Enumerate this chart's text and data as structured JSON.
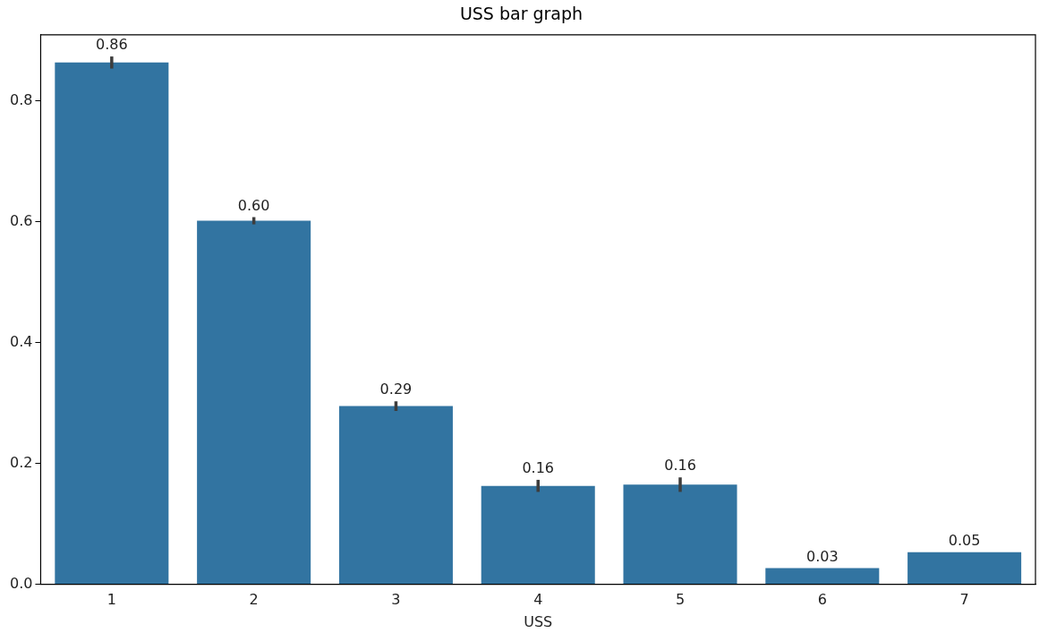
{
  "chart_data": {
    "type": "bar",
    "title": "USS bar graph",
    "xlabel": "USS",
    "categories": [
      "1",
      "2",
      "3",
      "4",
      "5",
      "6",
      "7"
    ],
    "values": [
      0.864,
      0.602,
      0.295,
      0.163,
      0.165,
      0.027,
      0.053
    ],
    "value_labels": [
      "0.86",
      "0.60",
      "0.29",
      "0.16",
      "0.16",
      "0.03",
      "0.05"
    ],
    "errors": [
      0.01,
      0.006,
      0.008,
      0.01,
      0.012,
      null,
      null
    ],
    "color": "#3274a1",
    "ylim": [
      0,
      0.91
    ],
    "yticks": [
      {
        "value": 0,
        "label": "0.0"
      },
      {
        "value": 0.2,
        "label": "0.2"
      },
      {
        "value": 0.4,
        "label": "0.4"
      },
      {
        "value": 0.6,
        "label": "0.6"
      },
      {
        "value": 0.8,
        "label": "0.8"
      }
    ],
    "grid": false,
    "legend": false
  }
}
